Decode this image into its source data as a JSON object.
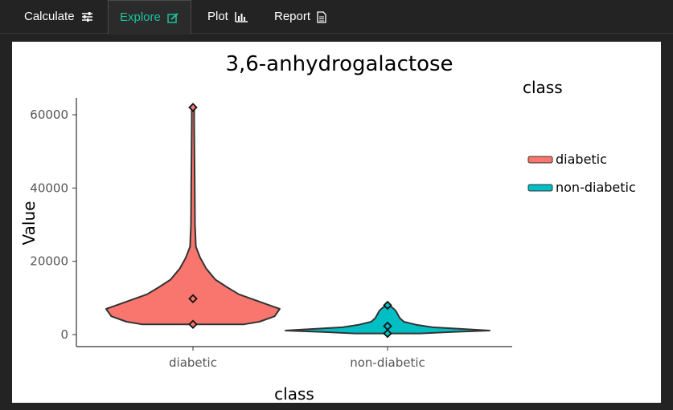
{
  "tabs": [
    {
      "label": "Calculate",
      "icon": "sliders-icon",
      "active": false
    },
    {
      "label": "Explore",
      "icon": "edit-icon",
      "active": true
    },
    {
      "label": "Plot",
      "icon": "bar-chart-icon",
      "active": false
    },
    {
      "label": "Report",
      "icon": "document-icon",
      "active": false
    }
  ],
  "colors": {
    "background": "#232323",
    "active_tab": "#19c39b",
    "diabetic": "#f8766d",
    "non_diabetic": "#00bfc4"
  },
  "chart_data": {
    "type": "violin",
    "title": "3,6-anhydrogalactose",
    "xlabel": "class",
    "ylabel": "Value",
    "categories": [
      "diabetic",
      "non-diabetic"
    ],
    "yticks": [
      0,
      20000,
      40000,
      60000
    ],
    "ylim": [
      -3000,
      65000
    ],
    "legend": {
      "title": "class",
      "position": "right",
      "entries": [
        "diabetic",
        "non-diabetic"
      ]
    },
    "grid": false,
    "series": [
      {
        "name": "diabetic",
        "color": "#f8766d",
        "points": [
          62000,
          9800,
          2800
        ],
        "profile": [
          [
            2800,
            0.5
          ],
          [
            3500,
            0.65
          ],
          [
            5000,
            0.8
          ],
          [
            7000,
            0.85
          ],
          [
            9000,
            0.65
          ],
          [
            11000,
            0.45
          ],
          [
            13000,
            0.33
          ],
          [
            15000,
            0.22
          ],
          [
            18000,
            0.13
          ],
          [
            21000,
            0.07
          ],
          [
            24000,
            0.028
          ],
          [
            30000,
            0.02
          ],
          [
            40000,
            0.017
          ],
          [
            50000,
            0.014
          ],
          [
            58000,
            0.012
          ],
          [
            62000,
            0.012
          ]
        ]
      },
      {
        "name": "non-diabetic",
        "color": "#00bfc4",
        "points": [
          8000,
          2300,
          300
        ],
        "profile": [
          [
            300,
            0.32
          ],
          [
            700,
            0.63
          ],
          [
            1100,
            1.0
          ],
          [
            1500,
            0.75
          ],
          [
            2000,
            0.44
          ],
          [
            2700,
            0.28
          ],
          [
            3500,
            0.16
          ],
          [
            4500,
            0.12
          ],
          [
            5500,
            0.1
          ],
          [
            6500,
            0.08
          ],
          [
            7300,
            0.05
          ],
          [
            8000,
            0.01
          ]
        ]
      }
    ]
  }
}
